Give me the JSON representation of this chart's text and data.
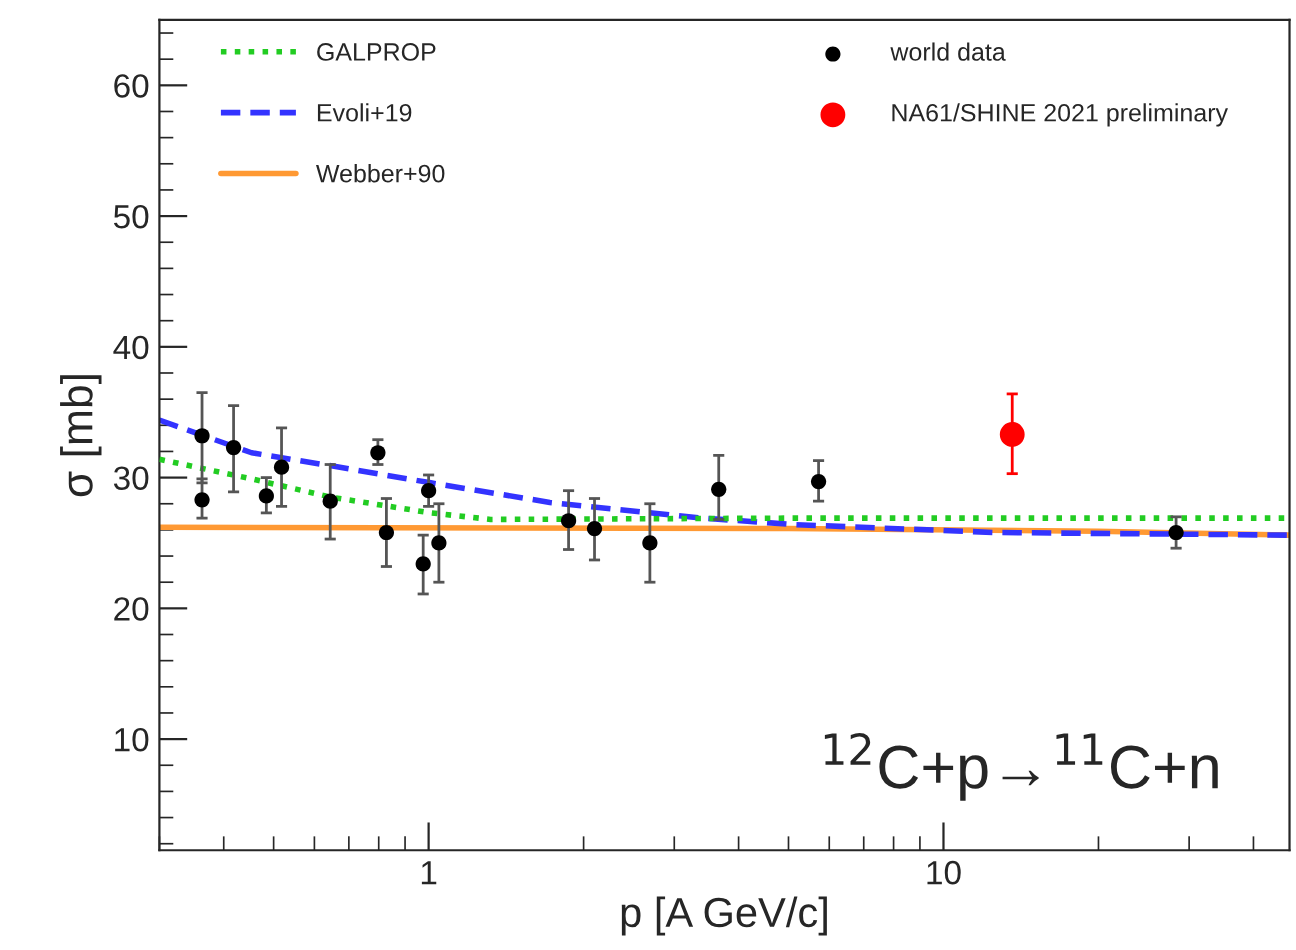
{
  "chart_data": {
    "type": "scatter",
    "xlabel": "p [A GeV/c]",
    "ylabel": "σ [mb]",
    "log": "x",
    "xlim": [
      0.3,
      47
    ],
    "xticks": [
      1,
      10
    ],
    "ylim": [
      1.5,
      65
    ],
    "yticks": [
      10,
      20,
      30,
      40,
      50,
      60
    ],
    "grid": false,
    "legend": "top",
    "annotations": [
      "$^{12}$C+p→$^{11}$C+n"
    ],
    "series": [
      {
        "name": "GALPROP",
        "type": "line",
        "line_style": "dotted",
        "marker": "none",
        "color": "#22cc22",
        "x": [
          0.3,
          0.453,
          0.647,
          1.01,
          1.32,
          5,
          20,
          47
        ],
        "values": [
          31.4,
          29.9,
          28.5,
          27.3,
          26.8,
          26.9,
          26.9,
          26.9
        ]
      },
      {
        "name": "Evoli+19",
        "type": "line",
        "line_style": "dashed",
        "marker": "none",
        "color": "#3333ff",
        "x": [
          0.3,
          0.453,
          0.647,
          1.01,
          1.72,
          3.41,
          5.17,
          12.6,
          46.6
        ],
        "values": [
          34.4,
          31.9,
          30.9,
          29.6,
          28.1,
          26.9,
          26.4,
          25.8,
          25.6
        ]
      },
      {
        "name": "Webber+90",
        "type": "line",
        "line_style": "solid",
        "marker": "none",
        "color": "#ff9933",
        "x": [
          0.3,
          5,
          20,
          47
        ],
        "values": [
          26.2,
          26.1,
          25.9,
          25.6
        ]
      },
      {
        "name": "world data",
        "marker": "circle",
        "color": "#000000",
        "x": [
          0.363,
          0.363,
          0.418,
          0.484,
          0.518,
          0.644,
          0.797,
          0.828,
          0.976,
          1.0,
          1.047,
          1.87,
          2.1,
          2.69,
          3.66,
          5.72,
          28.3
        ],
        "values": [
          33.2,
          28.3,
          32.3,
          28.6,
          30.8,
          28.2,
          31.9,
          25.8,
          23.4,
          29.0,
          25.0,
          26.7,
          26.1,
          25.0,
          29.1,
          29.7,
          25.8
        ],
        "errors": [
          [
            29.6,
            36.5
          ],
          [
            26.9,
            29.9
          ],
          [
            28.9,
            35.5
          ],
          [
            27.3,
            30.0
          ],
          [
            27.8,
            33.8
          ],
          [
            25.3,
            31.0
          ],
          [
            31.0,
            32.9
          ],
          [
            23.2,
            28.4
          ],
          [
            21.1,
            25.6
          ],
          [
            27.8,
            30.2
          ],
          [
            22.0,
            28.0
          ],
          [
            24.5,
            29.0
          ],
          [
            23.7,
            28.4
          ],
          [
            22.0,
            28.0
          ],
          [
            26.8,
            31.7
          ],
          [
            28.2,
            31.3
          ],
          [
            24.6,
            27.0
          ]
        ]
      },
      {
        "name": "NA61/SHINE 2021 preliminary",
        "marker": "circle",
        "color": "#ff0000",
        "x": [
          13.6
        ],
        "values": [
          33.3
        ],
        "errors": [
          [
            30.3,
            36.4
          ]
        ]
      }
    ]
  }
}
